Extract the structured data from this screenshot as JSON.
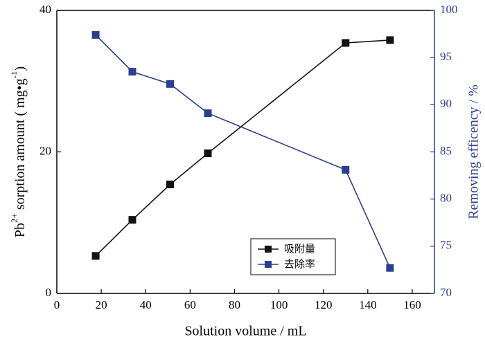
{
  "chart_data": {
    "type": "line",
    "x": [
      17.5,
      34,
      51,
      68,
      130,
      150
    ],
    "series": [
      {
        "name": "吸附量",
        "color": "#111111",
        "values": [
          5.3,
          10.4,
          15.4,
          19.8,
          35.4,
          35.8
        ]
      },
      {
        "name": "去除率",
        "color": "#2b3f8f",
        "axis": "y2",
        "values": [
          97.4,
          93.5,
          92.2,
          89.1,
          83.1,
          72.7
        ]
      }
    ],
    "xlabel": "Solution volume / mL",
    "ylabel": [
      "Pb",
      "2+",
      " sorption amount ( mg•g",
      "-1",
      ")"
    ],
    "y2label": "Removing efficency / %",
    "xlim": [
      0,
      170
    ],
    "xticks": [
      0,
      20,
      40,
      60,
      80,
      100,
      120,
      140,
      160
    ],
    "ylim": [
      0,
      40
    ],
    "yticks": [
      0,
      20,
      40
    ],
    "y2lim": [
      70,
      100
    ],
    "y2ticks": [
      70,
      75,
      80,
      85,
      90,
      95,
      100
    ],
    "legend": "lower right"
  }
}
